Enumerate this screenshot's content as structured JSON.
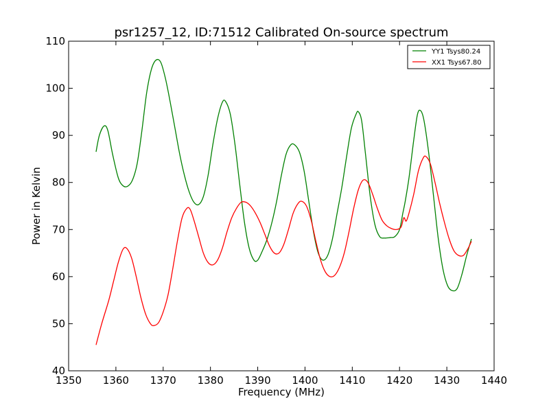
{
  "chart_data": {
    "type": "line",
    "title": "psr1257_12, ID:71512 Calibrated On-source spectrum",
    "xlabel": "Frequency (MHz)",
    "ylabel": "Power in Kelvin",
    "xlim": [
      1350,
      1440
    ],
    "ylim": [
      40,
      110
    ],
    "xticks": [
      1350,
      1360,
      1370,
      1380,
      1390,
      1400,
      1410,
      1420,
      1430,
      1440
    ],
    "yticks": [
      40,
      50,
      60,
      70,
      80,
      90,
      100,
      110
    ],
    "grid": false,
    "legend_position": "top-right",
    "series": [
      {
        "name": "YY1 Tsys80.24",
        "color": "#008000",
        "points": [
          [
            1355.8,
            86.5
          ],
          [
            1356.5,
            90.0
          ],
          [
            1357.5,
            92.0
          ],
          [
            1358.3,
            91.0
          ],
          [
            1359.3,
            86.0
          ],
          [
            1360.5,
            81.0
          ],
          [
            1361.5,
            79.3
          ],
          [
            1362.5,
            79.2
          ],
          [
            1363.5,
            80.5
          ],
          [
            1364.5,
            84.0
          ],
          [
            1365.5,
            91.0
          ],
          [
            1366.5,
            99.0
          ],
          [
            1367.5,
            104.0
          ],
          [
            1368.5,
            106.0
          ],
          [
            1369.5,
            105.5
          ],
          [
            1370.5,
            102.0
          ],
          [
            1371.5,
            97.0
          ],
          [
            1372.5,
            91.5
          ],
          [
            1373.5,
            86.0
          ],
          [
            1374.5,
            81.5
          ],
          [
            1375.5,
            78.0
          ],
          [
            1376.5,
            75.8
          ],
          [
            1377.5,
            75.3
          ],
          [
            1378.5,
            77.0
          ],
          [
            1379.5,
            81.5
          ],
          [
            1380.5,
            88.0
          ],
          [
            1381.5,
            93.5
          ],
          [
            1382.5,
            97.0
          ],
          [
            1383.2,
            97.2
          ],
          [
            1384.2,
            94.5
          ],
          [
            1385.2,
            88.0
          ],
          [
            1386.2,
            79.5
          ],
          [
            1387.2,
            71.5
          ],
          [
            1388.2,
            66.0
          ],
          [
            1389.2,
            63.5
          ],
          [
            1390.0,
            63.5
          ],
          [
            1391.0,
            65.5
          ],
          [
            1392.0,
            68.0
          ],
          [
            1393.0,
            71.5
          ],
          [
            1394.0,
            76.0
          ],
          [
            1395.0,
            81.5
          ],
          [
            1396.0,
            86.0
          ],
          [
            1397.0,
            88.0
          ],
          [
            1397.8,
            88.0
          ],
          [
            1398.8,
            86.5
          ],
          [
            1399.8,
            82.5
          ],
          [
            1400.8,
            76.0
          ],
          [
            1401.8,
            69.5
          ],
          [
            1402.8,
            65.0
          ],
          [
            1403.8,
            63.5
          ],
          [
            1404.8,
            64.5
          ],
          [
            1405.8,
            68.0
          ],
          [
            1406.8,
            73.5
          ],
          [
            1407.8,
            79.0
          ],
          [
            1408.8,
            85.5
          ],
          [
            1409.8,
            91.5
          ],
          [
            1410.8,
            94.5
          ],
          [
            1411.3,
            95.0
          ],
          [
            1412.0,
            93.0
          ],
          [
            1412.8,
            86.0
          ],
          [
            1413.8,
            77.0
          ],
          [
            1414.8,
            71.0
          ],
          [
            1415.8,
            68.5
          ],
          [
            1416.8,
            68.2
          ],
          [
            1418.0,
            68.3
          ],
          [
            1419.0,
            68.5
          ],
          [
            1420.0,
            70.0
          ],
          [
            1420.7,
            73.5
          ],
          [
            1421.2,
            76.0
          ],
          [
            1422.0,
            81.0
          ],
          [
            1423.0,
            89.0
          ],
          [
            1423.8,
            94.5
          ],
          [
            1424.5,
            95.2
          ],
          [
            1425.2,
            93.0
          ],
          [
            1426.2,
            86.0
          ],
          [
            1427.2,
            77.0
          ],
          [
            1428.2,
            68.0
          ],
          [
            1429.2,
            61.5
          ],
          [
            1430.2,
            58.0
          ],
          [
            1431.2,
            57.0
          ],
          [
            1432.2,
            57.5
          ],
          [
            1433.2,
            60.5
          ],
          [
            1434.2,
            64.5
          ],
          [
            1435.2,
            68.0
          ]
        ]
      },
      {
        "name": "XX1 Tsys67.80",
        "color": "#ff0000",
        "points": [
          [
            1355.8,
            45.5
          ],
          [
            1357.0,
            50.0
          ],
          [
            1358.5,
            55.0
          ],
          [
            1359.5,
            59.0
          ],
          [
            1360.5,
            63.0
          ],
          [
            1361.5,
            65.8
          ],
          [
            1362.3,
            66.0
          ],
          [
            1363.3,
            64.0
          ],
          [
            1364.3,
            60.0
          ],
          [
            1365.3,
            55.5
          ],
          [
            1366.3,
            52.0
          ],
          [
            1367.3,
            50.0
          ],
          [
            1368.0,
            49.6
          ],
          [
            1369.0,
            50.2
          ],
          [
            1370.0,
            52.5
          ],
          [
            1371.0,
            56.0
          ],
          [
            1372.0,
            61.5
          ],
          [
            1373.0,
            67.5
          ],
          [
            1374.0,
            72.5
          ],
          [
            1375.0,
            74.5
          ],
          [
            1375.7,
            74.3
          ],
          [
            1376.5,
            72.0
          ],
          [
            1377.5,
            68.5
          ],
          [
            1378.5,
            65.0
          ],
          [
            1379.5,
            63.0
          ],
          [
            1380.5,
            62.5
          ],
          [
            1381.5,
            63.5
          ],
          [
            1382.5,
            66.0
          ],
          [
            1383.5,
            69.5
          ],
          [
            1384.5,
            72.5
          ],
          [
            1385.5,
            74.5
          ],
          [
            1386.5,
            75.8
          ],
          [
            1387.5,
            75.8
          ],
          [
            1388.5,
            75.0
          ],
          [
            1389.5,
            73.5
          ],
          [
            1390.5,
            71.5
          ],
          [
            1391.5,
            69.0
          ],
          [
            1392.5,
            66.5
          ],
          [
            1393.5,
            65.0
          ],
          [
            1394.5,
            65.0
          ],
          [
            1395.5,
            66.8
          ],
          [
            1396.5,
            70.0
          ],
          [
            1397.5,
            73.5
          ],
          [
            1398.5,
            75.5
          ],
          [
            1399.3,
            76.0
          ],
          [
            1400.3,
            75.0
          ],
          [
            1401.3,
            72.0
          ],
          [
            1402.3,
            67.5
          ],
          [
            1403.3,
            63.5
          ],
          [
            1404.3,
            61.0
          ],
          [
            1405.3,
            60.0
          ],
          [
            1406.3,
            60.3
          ],
          [
            1407.3,
            62.0
          ],
          [
            1408.3,
            65.0
          ],
          [
            1409.3,
            69.5
          ],
          [
            1410.3,
            74.5
          ],
          [
            1411.3,
            78.5
          ],
          [
            1412.3,
            80.5
          ],
          [
            1413.3,
            80.0
          ],
          [
            1414.3,
            77.5
          ],
          [
            1415.3,
            74.5
          ],
          [
            1416.3,
            72.0
          ],
          [
            1417.3,
            70.8
          ],
          [
            1418.3,
            70.2
          ],
          [
            1419.3,
            70.0
          ],
          [
            1420.3,
            70.5
          ],
          [
            1420.9,
            72.5
          ],
          [
            1421.4,
            71.8
          ],
          [
            1422.0,
            73.5
          ],
          [
            1423.0,
            77.5
          ],
          [
            1424.0,
            82.5
          ],
          [
            1425.0,
            85.2
          ],
          [
            1425.6,
            85.5
          ],
          [
            1426.5,
            84.0
          ],
          [
            1427.5,
            80.0
          ],
          [
            1428.5,
            75.5
          ],
          [
            1429.5,
            71.5
          ],
          [
            1430.5,
            68.0
          ],
          [
            1431.5,
            65.5
          ],
          [
            1432.5,
            64.5
          ],
          [
            1433.5,
            64.5
          ],
          [
            1434.5,
            66.0
          ],
          [
            1435.2,
            67.5
          ]
        ]
      }
    ]
  }
}
